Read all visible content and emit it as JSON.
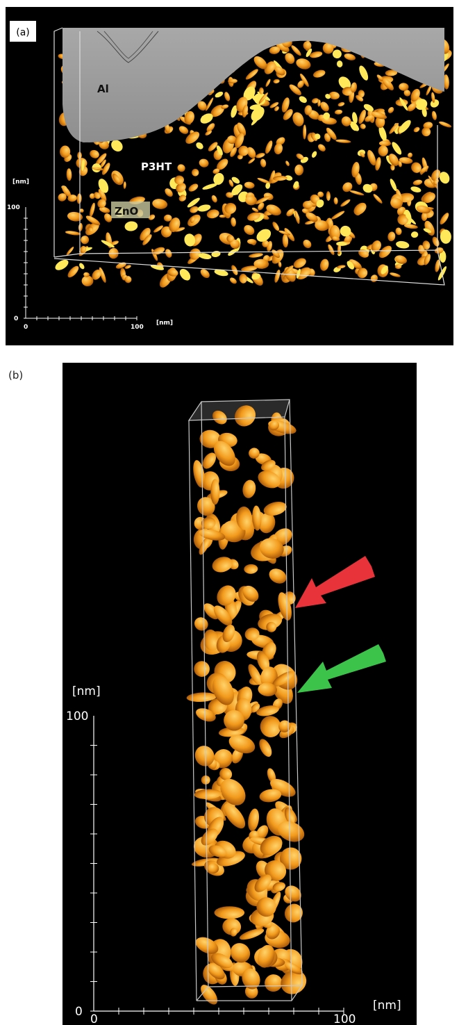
{
  "panels": {
    "a": {
      "label": "(a)",
      "regions": [
        "Al",
        "P3HT",
        "ZnO"
      ],
      "y_axis": {
        "unit": "[nm]",
        "top": "100",
        "bottom": "0"
      },
      "x_axis": {
        "unit": "[nm]",
        "left": "0",
        "right": "100"
      }
    },
    "b": {
      "label": "(b)",
      "y_axis": {
        "unit": "[nm]",
        "top": "100",
        "bottom": "0"
      },
      "x_axis": {
        "unit": "[nm]",
        "left": "0",
        "right": "100"
      }
    }
  }
}
